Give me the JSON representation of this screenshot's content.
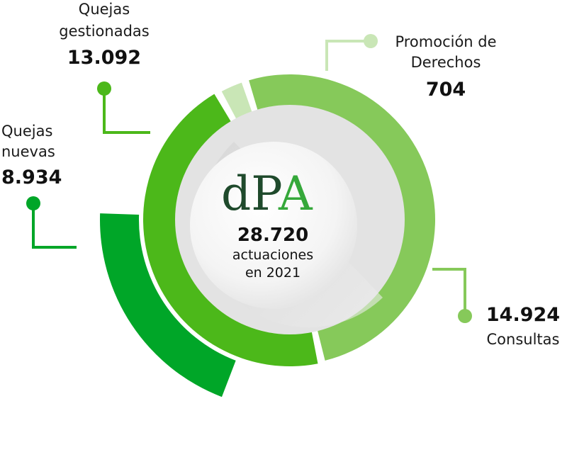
{
  "chart_data": {
    "type": "donut",
    "logo": {
      "d": "d",
      "p": "P",
      "a": "A"
    },
    "center": {
      "value": "28.720",
      "line1": "actuaciones",
      "line2": "en 2021"
    },
    "segments": [
      {
        "label_lines": [
          "Promoción de",
          "Derechos"
        ],
        "value": 704,
        "value_text": "704",
        "color": "#c9e6b6"
      },
      {
        "label_lines": [
          "Consultas"
        ],
        "value": 14924,
        "value_text": "14.924",
        "color": "#86c95a"
      },
      {
        "label_lines": [
          "Quejas",
          "gestionadas"
        ],
        "value": 13092,
        "value_text": "13.092",
        "color": "#4cb81a"
      },
      {
        "label_lines": [
          "Quejas",
          "nuevas"
        ],
        "value": 8934,
        "value_text": "8.934",
        "color": "#00a628"
      }
    ]
  }
}
